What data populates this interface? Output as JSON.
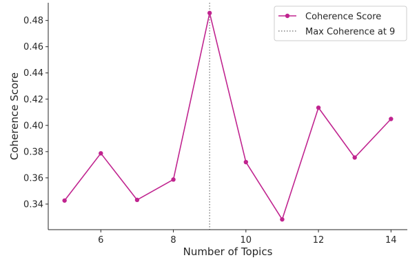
{
  "chart_data": {
    "type": "line",
    "title": "",
    "xlabel": "Number of Topics",
    "ylabel": "Coherence Score",
    "xlim": [
      4.55,
      14.45
    ],
    "ylim": [
      0.3205,
      0.4935
    ],
    "x_ticks": [
      6,
      8,
      10,
      12,
      14
    ],
    "x_tick_labels": [
      "6",
      "8",
      "10",
      "12",
      "14"
    ],
    "y_ticks": [
      0.34,
      0.36,
      0.38,
      0.4,
      0.42,
      0.44,
      0.46,
      0.48
    ],
    "y_tick_labels": [
      "0.34",
      "0.36",
      "0.38",
      "0.40",
      "0.42",
      "0.44",
      "0.46",
      "0.48"
    ],
    "grid": false,
    "legend_position": "top-right",
    "series": [
      {
        "name": "Coherence Score",
        "color": "#c0248f",
        "x": [
          5,
          6,
          7,
          8,
          9,
          10,
          11,
          12,
          13,
          14
        ],
        "y": [
          0.3427,
          0.3787,
          0.3432,
          0.3587,
          0.4857,
          0.372,
          0.3283,
          0.4135,
          0.3755,
          0.4049
        ]
      }
    ],
    "reference_line": {
      "name": "Max Coherence at 9",
      "orientation": "vertical",
      "x": 9,
      "color": "#808080",
      "style": "dotted"
    }
  }
}
